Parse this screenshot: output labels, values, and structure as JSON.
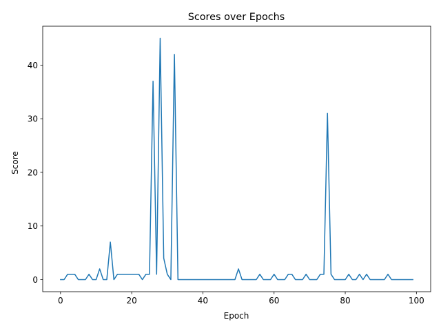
{
  "chart_data": {
    "type": "line",
    "title": "Scores over Epochs",
    "xlabel": "Epoch",
    "ylabel": "Score",
    "xlim": [
      -5,
      104
    ],
    "ylim": [
      -2.25,
      47.25
    ],
    "xticks": [
      0,
      20,
      40,
      60,
      80,
      100
    ],
    "yticks": [
      0,
      10,
      20,
      30,
      40
    ],
    "grid": false,
    "series": [
      {
        "color": "#1f77b4",
        "x": [
          0,
          1,
          2,
          3,
          4,
          5,
          6,
          7,
          8,
          9,
          10,
          11,
          12,
          13,
          14,
          15,
          16,
          17,
          18,
          19,
          20,
          21,
          22,
          23,
          24,
          25,
          26,
          27,
          28,
          29,
          30,
          31,
          32,
          33,
          34,
          35,
          36,
          37,
          38,
          39,
          40,
          41,
          42,
          43,
          44,
          45,
          46,
          47,
          48,
          49,
          50,
          51,
          52,
          53,
          54,
          55,
          56,
          57,
          58,
          59,
          60,
          61,
          62,
          63,
          64,
          65,
          66,
          67,
          68,
          69,
          70,
          71,
          72,
          73,
          74,
          75,
          76,
          77,
          78,
          79,
          80,
          81,
          82,
          83,
          84,
          85,
          86,
          87,
          88,
          89,
          90,
          91,
          92,
          93,
          94,
          95,
          96,
          97,
          98,
          99
        ],
        "values": [
          0,
          0,
          1,
          1,
          1,
          0,
          0,
          0,
          1,
          0,
          0,
          2,
          0,
          0,
          7,
          0,
          1,
          1,
          1,
          1,
          1,
          1,
          1,
          0,
          1,
          1,
          37,
          1,
          45,
          4,
          1,
          0,
          42,
          0,
          0,
          0,
          0,
          0,
          0,
          0,
          0,
          0,
          0,
          0,
          0,
          0,
          0,
          0,
          0,
          0,
          2,
          0,
          0,
          0,
          0,
          0,
          1,
          0,
          0,
          0,
          1,
          0,
          0,
          0,
          1,
          1,
          0,
          0,
          0,
          1,
          0,
          0,
          0,
          1,
          1,
          31,
          1,
          0,
          0,
          0,
          0,
          1,
          0,
          0,
          1,
          0,
          1,
          0,
          0,
          0,
          0,
          0,
          1,
          0,
          0,
          0,
          0,
          0,
          0,
          0
        ]
      }
    ]
  }
}
